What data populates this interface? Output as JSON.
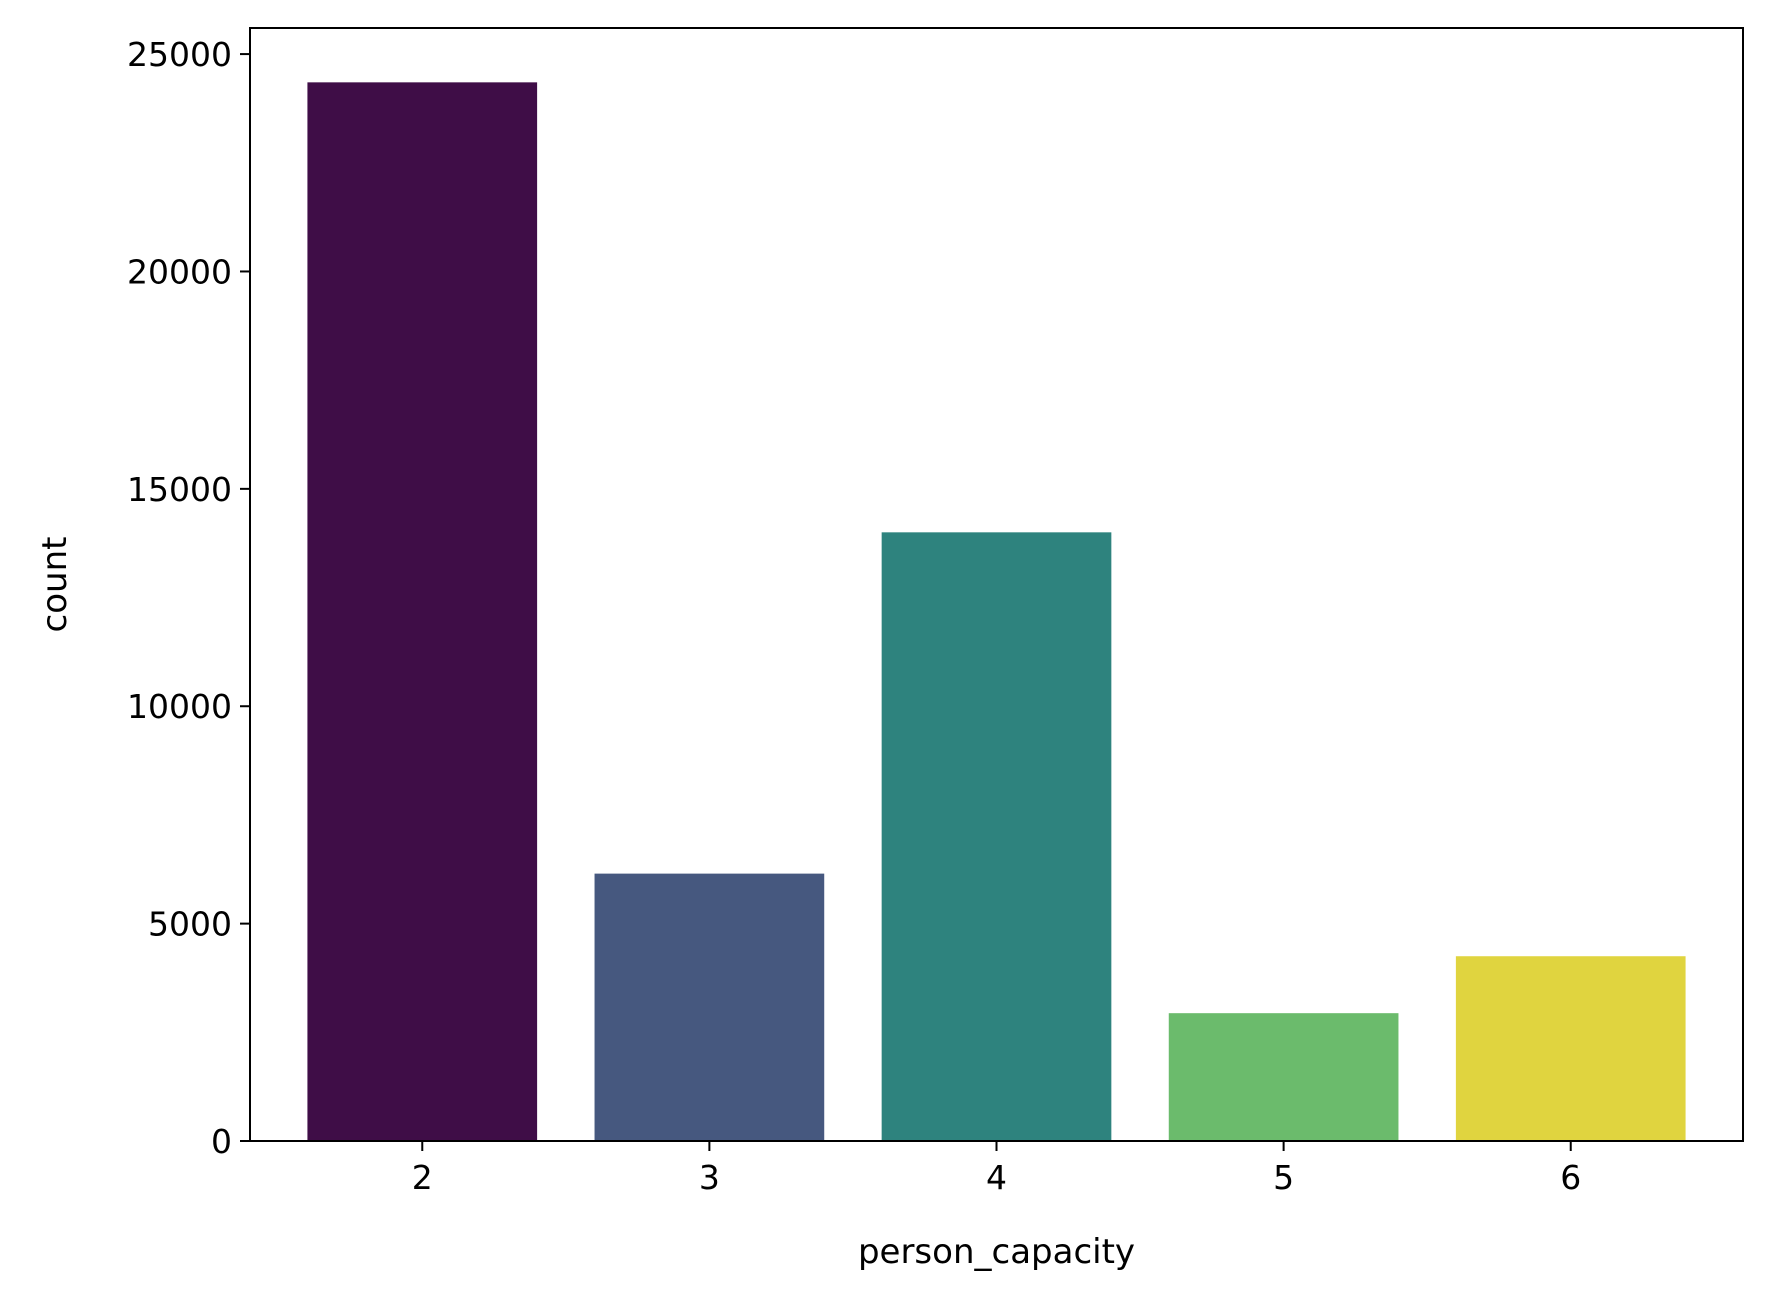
{
  "chart_data": {
    "type": "bar",
    "title": "",
    "xlabel": "person_capacity",
    "ylabel": "count",
    "categories": [
      "2",
      "3",
      "4",
      "5",
      "6"
    ],
    "values": [
      24350,
      6150,
      14000,
      2940,
      4250
    ],
    "colors": [
      "#3f0d47",
      "#46587f",
      "#2e837e",
      "#6bbb6c",
      "#e0d43f"
    ],
    "ylim": [
      0,
      25600
    ],
    "yticks": [
      0,
      5000,
      10000,
      15000,
      20000,
      25000
    ],
    "ytick_labels": [
      "0",
      "5000",
      "10000",
      "15000",
      "20000",
      "25000"
    ],
    "grid": false,
    "legend": "none"
  }
}
